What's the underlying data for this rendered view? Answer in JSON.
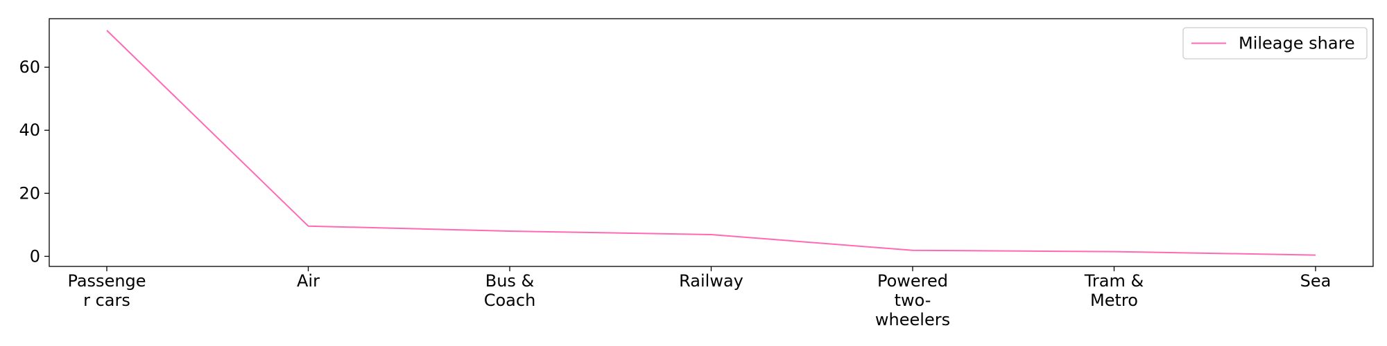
{
  "chart_data": {
    "type": "line",
    "title": "",
    "xlabel": "",
    "ylabel": "",
    "categories": [
      [
        "Passenge",
        "r cars"
      ],
      [
        "Air"
      ],
      [
        "Bus &",
        "Coach"
      ],
      [
        "Railway"
      ],
      [
        "Powered",
        "two-",
        "wheelers"
      ],
      [
        "Tram &",
        "Metro"
      ],
      [
        "Sea"
      ]
    ],
    "series": [
      {
        "name": "Mileage share",
        "color": "#ff69b4",
        "values": [
          71.7,
          9.6,
          8.0,
          6.9,
          1.9,
          1.5,
          0.4
        ]
      }
    ],
    "ylim": [
      -3.2,
      75.4
    ],
    "yticks": [
      0,
      20,
      40,
      60
    ],
    "legend_position": "top-right",
    "grid": false
  }
}
